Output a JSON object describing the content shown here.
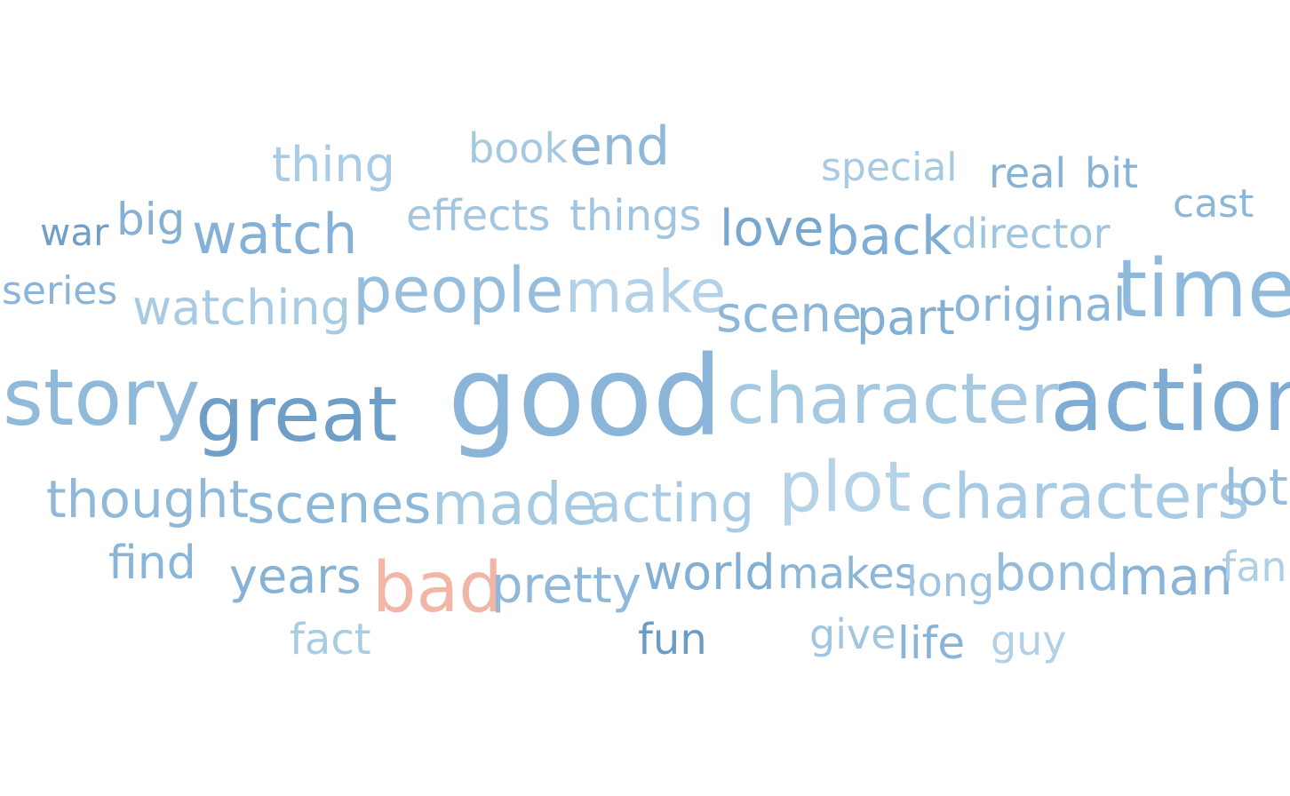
{
  "words": [
    {
      "text": "thing",
      "color": "#a9cbe3"
    },
    {
      "text": "book",
      "color": "#a6c9e2"
    },
    {
      "text": "end",
      "color": "#8fb8d9"
    },
    {
      "text": "special",
      "color": "#a7cae3"
    },
    {
      "text": "real",
      "color": "#86b2d6"
    },
    {
      "text": "bit",
      "color": "#87b3d7"
    },
    {
      "text": "cast",
      "color": "#8db7d8"
    },
    {
      "text": "war",
      "color": "#6f9fc8"
    },
    {
      "text": "big",
      "color": "#86b1d5"
    },
    {
      "text": "watch",
      "color": "#85b1d6"
    },
    {
      "text": "effects",
      "color": "#a2c6e0"
    },
    {
      "text": "things",
      "color": "#a1c5e0"
    },
    {
      "text": "love",
      "color": "#77a7cf"
    },
    {
      "text": "back",
      "color": "#80add3"
    },
    {
      "text": "director",
      "color": "#a1c5df"
    },
    {
      "text": "series",
      "color": "#8ab5d8"
    },
    {
      "text": "watching",
      "color": "#a8cbe3"
    },
    {
      "text": "people",
      "color": "#96bedc"
    },
    {
      "text": "make",
      "color": "#b3d2e7"
    },
    {
      "text": "scene",
      "color": "#8db7d8"
    },
    {
      "text": "part",
      "color": "#83afd4"
    },
    {
      "text": "original",
      "color": "#8cb6d8"
    },
    {
      "text": "time",
      "color": "#8fb9da"
    },
    {
      "text": "story",
      "color": "#90b9da"
    },
    {
      "text": "great",
      "color": "#6f9ec7"
    },
    {
      "text": "good",
      "color": "#8ab5d8"
    },
    {
      "text": "character",
      "color": "#a6c9e2"
    },
    {
      "text": "action",
      "color": "#7eacd2"
    },
    {
      "text": "thought",
      "color": "#8fb8d9"
    },
    {
      "text": "scenes",
      "color": "#8db7d8"
    },
    {
      "text": "made",
      "color": "#a7cae3"
    },
    {
      "text": "acting",
      "color": "#a9cbe4"
    },
    {
      "text": "plot",
      "color": "#b5d3e7"
    },
    {
      "text": "characters",
      "color": "#a8cbe3"
    },
    {
      "text": "lot",
      "color": "#94bcdc"
    },
    {
      "text": "find",
      "color": "#8ab5d8"
    },
    {
      "text": "years",
      "color": "#86b2d6"
    },
    {
      "text": "bad",
      "color": "#f2b6a7"
    },
    {
      "text": "pretty",
      "color": "#8fb8da"
    },
    {
      "text": "world",
      "color": "#82afd4"
    },
    {
      "text": "makes",
      "color": "#8cb6d8"
    },
    {
      "text": "long",
      "color": "#a0c4df"
    },
    {
      "text": "bond",
      "color": "#94bcdc"
    },
    {
      "text": "man",
      "color": "#8ab5d8"
    },
    {
      "text": "fan",
      "color": "#afcfe6"
    },
    {
      "text": "fact",
      "color": "#a9cbe3"
    },
    {
      "text": "fun",
      "color": "#6b9bc6"
    },
    {
      "text": "give",
      "color": "#a3c6e0"
    },
    {
      "text": "life",
      "color": "#89b4d7"
    },
    {
      "text": "guy",
      "color": "#b2d0e6"
    }
  ]
}
